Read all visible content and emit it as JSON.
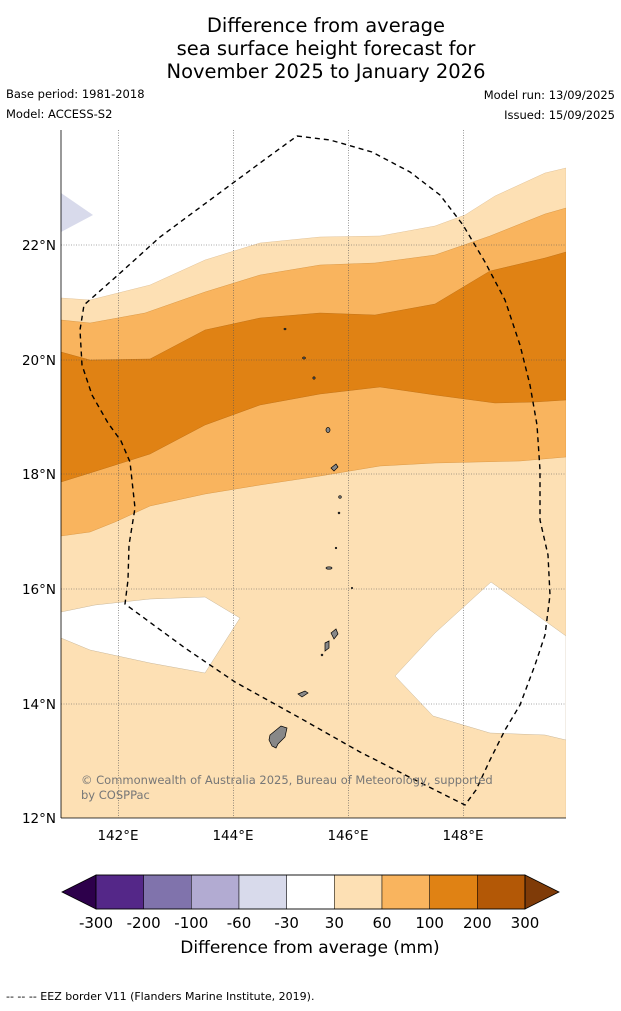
{
  "header": {
    "title_lines": [
      "Difference from average",
      "sea surface height forecast for",
      "November 2025 to January 2026"
    ],
    "base_period": "Base period: 1981-2018",
    "model": "Model: ACCESS-S2",
    "model_run": "Model run: 13/09/2025",
    "issued": "Issued: 15/09/2025"
  },
  "map": {
    "lat_labels": [
      "22°N",
      "20°N",
      "18°N",
      "16°N",
      "14°N",
      "12°N"
    ],
    "lon_labels": [
      "142°E",
      "144°E",
      "146°E",
      "148°E"
    ],
    "copyright_lines": [
      "© Commonwealth of Australia 2025, Bureau of Meteorology, supported",
      "by COSPPac"
    ],
    "colors": {
      "band_30_60": "#fde0b4",
      "band_60_100": "#f9b45e",
      "band_100_200": "#e08214",
      "band_neg30_neg60": "#d8daeb",
      "land": "#888888",
      "eez_line": "#000000"
    }
  },
  "colorbar": {
    "tick_labels": [
      "-300",
      "-200",
      "-100",
      "-60",
      "-30",
      "30",
      "60",
      "100",
      "200",
      "300"
    ],
    "colors": [
      "#2d004b",
      "#542788",
      "#8073ac",
      "#b2abd2",
      "#d8daeb",
      "#ffffff",
      "#fde0b4",
      "#f9b45e",
      "#e08214",
      "#b35806",
      "#7f3b08"
    ],
    "title": "Difference from average (mm)"
  },
  "footnote": "-- -- -- EEZ border V11 (Flanders Marine Institute, 2019)."
}
